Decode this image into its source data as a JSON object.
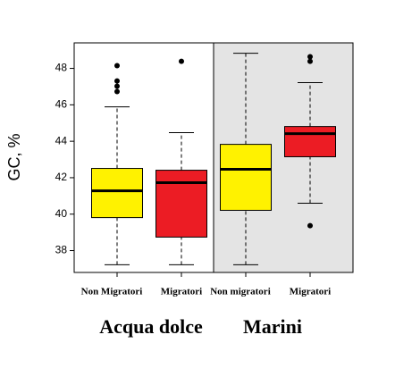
{
  "chart_data": {
    "type": "box",
    "y_label": "GC, %",
    "categories": [
      "Non Migratori",
      "Migratori",
      "Non migratori",
      "Migratori"
    ],
    "groups": [
      {
        "name": "Acqua dolce",
        "shaded": false
      },
      {
        "name": "Marini",
        "shaded": true
      }
    ],
    "series": [
      {
        "color": "#fff200",
        "min": 37.22,
        "q1": 39.81,
        "median": 41.28,
        "q3": 42.51,
        "max": 45.89,
        "outliers": [
          48.15,
          47.31,
          47.02,
          46.73
        ]
      },
      {
        "color": "#ec1c24",
        "min": 37.22,
        "q1": 38.74,
        "median": 41.73,
        "q3": 42.41,
        "max": 44.47,
        "outliers": [
          48.39
        ]
      },
      {
        "color": "#fff200",
        "min": 37.22,
        "q1": 40.21,
        "median": 42.46,
        "q3": 43.83,
        "max": 48.83,
        "outliers": []
      },
      {
        "color": "#ec1c24",
        "min": 40.6,
        "q1": 43.15,
        "median": 44.42,
        "q3": 44.81,
        "max": 47.22,
        "outliers": [
          48.64,
          48.39,
          39.37
        ]
      }
    ],
    "shade_color": "#e4e4e4",
    "ylim": [
      36.8,
      49.4
    ],
    "yticks": [
      38,
      40,
      42,
      44,
      46,
      48
    ]
  }
}
